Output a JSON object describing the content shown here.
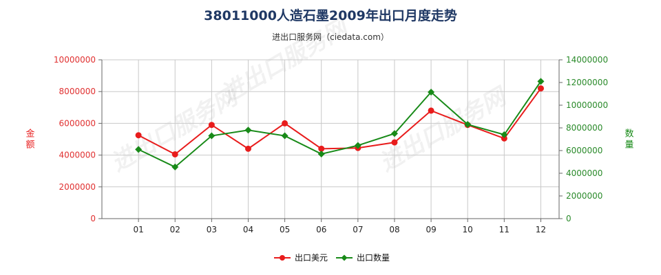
{
  "title": "38011000人造石墨2009年出口月度走势",
  "subtitle": "进出口服务网（ciedata.com）",
  "watermark": "进出口服务网",
  "colors": {
    "usd": "#e81c1c",
    "qty": "#188a18",
    "grid": "#c8c8c8",
    "title": "#1f3864"
  },
  "chart_data": {
    "type": "line",
    "categories": [
      "01",
      "02",
      "03",
      "04",
      "05",
      "06",
      "07",
      "08",
      "09",
      "10",
      "11",
      "12"
    ],
    "series": [
      {
        "name": "出口美元",
        "axis": "left",
        "values": [
          5250000,
          4050000,
          5900000,
          4400000,
          6000000,
          4400000,
          4450000,
          4800000,
          6800000,
          5900000,
          5050000,
          8200000
        ]
      },
      {
        "name": "出口数量",
        "axis": "right",
        "values": [
          6100000,
          4550000,
          7300000,
          7800000,
          7300000,
          5700000,
          6450000,
          7500000,
          11150000,
          8300000,
          7400000,
          12100000
        ]
      }
    ],
    "y_left": {
      "label": "金额",
      "min": 0,
      "max": 10000000,
      "ticks": [
        "0",
        "2000000",
        "4000000",
        "6000000",
        "8000000",
        "10000000"
      ]
    },
    "y_right": {
      "label": "数量",
      "min": 0,
      "max": 14000000,
      "ticks": [
        "0",
        "2000000",
        "4000000",
        "6000000",
        "8000000",
        "10000000",
        "12000000",
        "14000000"
      ]
    },
    "grid": true,
    "legend": "bottom-center"
  }
}
